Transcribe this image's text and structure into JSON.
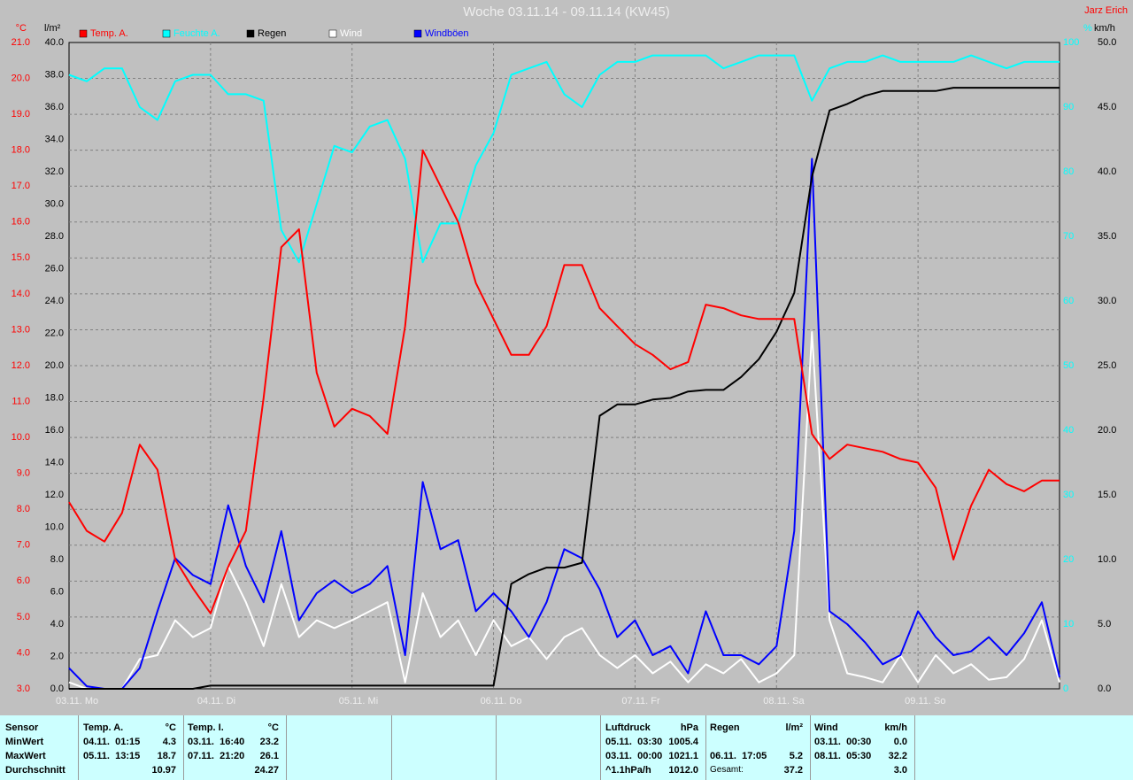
{
  "chart_data": {
    "type": "line",
    "title": "Woche 03.11.14 - 09.11.14 (KW45)",
    "author": "Jarz Erich",
    "categories": [
      "03.11. Mo",
      null,
      null,
      null,
      null,
      null,
      null,
      null,
      "04.11. Di",
      null,
      null,
      null,
      null,
      null,
      null,
      null,
      "05.11. Mi",
      null,
      null,
      null,
      null,
      null,
      null,
      null,
      "06.11. Do",
      null,
      null,
      null,
      null,
      null,
      null,
      null,
      "07.11. Fr",
      null,
      null,
      null,
      null,
      null,
      null,
      null,
      "08.11. Sa",
      null,
      null,
      null,
      null,
      null,
      null,
      null,
      "09.11. So",
      null,
      null,
      null,
      null,
      null,
      null,
      null,
      null
    ],
    "ylabel": "°C",
    "ylim": [
      3,
      21
    ],
    "yticks": [
      {
        "value": 3,
        "label": "3.0"
      },
      {
        "value": 4,
        "label": "4.0"
      },
      {
        "value": 5,
        "label": "5.0"
      },
      {
        "value": 6,
        "label": "6.0"
      },
      {
        "value": 7,
        "label": "7.0"
      },
      {
        "value": 8,
        "label": "8.0"
      },
      {
        "value": 9,
        "label": "9.0"
      },
      {
        "value": 10,
        "label": "10.0"
      },
      {
        "value": 11,
        "label": "11.0"
      },
      {
        "value": 12,
        "label": "12.0"
      },
      {
        "value": 13,
        "label": "13.0"
      },
      {
        "value": 14,
        "label": "14.0"
      },
      {
        "value": 15,
        "label": "15.0"
      },
      {
        "value": 16,
        "label": "16.0"
      },
      {
        "value": 17,
        "label": "17.0"
      },
      {
        "value": 18,
        "label": "18.0"
      },
      {
        "value": 19,
        "label": "19.0"
      },
      {
        "value": 20,
        "label": "20.0"
      },
      {
        "value": 21,
        "label": "21.0"
      }
    ],
    "y2label": "l/m²",
    "y2lim": [
      0,
      40
    ],
    "y2ticks": [
      {
        "value": 0,
        "label": "0.0"
      },
      {
        "value": 2,
        "label": "2.0"
      },
      {
        "value": 4,
        "label": "4.0"
      },
      {
        "value": 6,
        "label": "6.0"
      },
      {
        "value": 8,
        "label": "8.0"
      },
      {
        "value": 10,
        "label": "10.0"
      },
      {
        "value": 12,
        "label": "12.0"
      },
      {
        "value": 14,
        "label": "14.0"
      },
      {
        "value": 16,
        "label": "16.0"
      },
      {
        "value": 18,
        "label": "18.0"
      },
      {
        "value": 20,
        "label": "20.0"
      },
      {
        "value": 22,
        "label": "22.0"
      },
      {
        "value": 24,
        "label": "24.0"
      },
      {
        "value": 26,
        "label": "26.0"
      },
      {
        "value": 28,
        "label": "28.0"
      },
      {
        "value": 30,
        "label": "30.0"
      },
      {
        "value": 32,
        "label": "32.0"
      },
      {
        "value": 34,
        "label": "34.0"
      },
      {
        "value": 36,
        "label": "36.0"
      },
      {
        "value": 38,
        "label": "38.0"
      },
      {
        "value": 40,
        "label": "40.0"
      }
    ],
    "y3label": "%",
    "y3lim": [
      0,
      100
    ],
    "y3ticks": [
      0,
      10,
      20,
      30,
      40,
      50,
      60,
      70,
      80,
      90,
      100
    ],
    "y4label": "km/h",
    "y4lim": [
      0,
      50
    ],
    "y4ticks": [
      {
        "value": 0,
        "label": "0.0"
      },
      {
        "value": 5,
        "label": "5.0"
      },
      {
        "value": 10,
        "label": "10.0"
      },
      {
        "value": 15,
        "label": "15.0"
      },
      {
        "value": 20,
        "label": "20.0"
      },
      {
        "value": 25,
        "label": "25.0"
      },
      {
        "value": 30,
        "label": "30.0"
      },
      {
        "value": 35,
        "label": "35.0"
      },
      {
        "value": 40,
        "label": "40.0"
      },
      {
        "value": 45,
        "label": "45.0"
      },
      {
        "value": 50,
        "label": "50.0"
      }
    ],
    "grid": true,
    "series": [
      {
        "name": "Temp. A.",
        "color": "#ff0000",
        "axis": "y",
        "values": [
          8.2,
          7.4,
          7.1,
          7.9,
          9.8,
          9.1,
          6.6,
          5.8,
          5.1,
          6.4,
          7.4,
          11.1,
          15.3,
          15.8,
          11.8,
          10.3,
          10.8,
          10.6,
          10.1,
          13.1,
          18.0,
          17.0,
          16.0,
          14.3,
          13.3,
          12.3,
          12.3,
          13.1,
          14.8,
          14.8,
          13.6,
          13.1,
          12.6,
          12.3,
          11.9,
          12.1,
          13.7,
          13.6,
          13.4,
          13.3,
          13.3,
          13.3,
          10.1,
          9.4,
          9.8,
          9.7,
          9.6,
          9.4,
          9.3,
          8.6,
          6.6,
          8.1,
          9.1,
          8.7,
          8.5,
          8.8,
          8.8
        ]
      },
      {
        "name": "Feuchte A.",
        "color": "#00ffff",
        "axis": "y3",
        "values": [
          95,
          94,
          96,
          96,
          90,
          88,
          94,
          95,
          95,
          92,
          92,
          91,
          71,
          66,
          75,
          84,
          83,
          87,
          88,
          82,
          66,
          72,
          72,
          81,
          86,
          95,
          96,
          97,
          92,
          90,
          95,
          97,
          97,
          98,
          98,
          98,
          98,
          96,
          97,
          98,
          98,
          98,
          91,
          96,
          97,
          97,
          98,
          97,
          97,
          97,
          97,
          98,
          97,
          96,
          97,
          97,
          97
        ]
      },
      {
        "name": "Regen",
        "color": "#000000",
        "axis": "y2",
        "values": [
          0,
          0,
          0,
          0,
          0,
          0,
          0,
          0,
          0.2,
          0.2,
          0.2,
          0.2,
          0.2,
          0.2,
          0.2,
          0.2,
          0.2,
          0.2,
          0.2,
          0.2,
          0.2,
          0.2,
          0.2,
          0.2,
          0.2,
          6.5,
          7.1,
          7.5,
          7.5,
          7.8,
          16.9,
          17.6,
          17.6,
          17.9,
          18.0,
          18.4,
          18.5,
          18.5,
          19.3,
          20.4,
          22.1,
          24.5,
          31.7,
          35.8,
          36.2,
          36.7,
          37.0,
          37.0,
          37.0,
          37.0,
          37.2,
          37.2,
          37.2,
          37.2,
          37.2,
          37.2,
          37.2
        ]
      },
      {
        "name": "Wind",
        "color": "#ffffff",
        "axis": "y4",
        "values": [
          0.5,
          0,
          0,
          0,
          2.3,
          2.6,
          5.3,
          4.0,
          4.7,
          9.5,
          6.7,
          3.3,
          8.1,
          4.0,
          5.3,
          4.7,
          5.3,
          6.0,
          6.7,
          0.5,
          7.4,
          4.0,
          5.3,
          2.6,
          5.3,
          3.3,
          4.0,
          2.3,
          4.0,
          4.7,
          2.6,
          1.6,
          2.6,
          1.2,
          2.1,
          0.5,
          1.9,
          1.2,
          2.3,
          0.5,
          1.2,
          2.6,
          27.6,
          5.3,
          1.2,
          0.9,
          0.5,
          2.6,
          0.5,
          2.6,
          1.2,
          1.9,
          0.7,
          0.9,
          2.3,
          5.3,
          0.5
        ]
      },
      {
        "name": "Windböen",
        "color": "#0000ff",
        "axis": "y4",
        "values": [
          1.6,
          0.2,
          0,
          0,
          1.6,
          6.0,
          10.1,
          8.8,
          8.1,
          14.2,
          9.5,
          6.7,
          12.2,
          5.3,
          7.4,
          8.4,
          7.4,
          8.1,
          9.5,
          2.6,
          16.0,
          10.8,
          11.5,
          6.0,
          7.4,
          6.0,
          4.0,
          6.7,
          10.8,
          10.1,
          7.7,
          4.0,
          5.3,
          2.6,
          3.3,
          1.2,
          6.0,
          2.6,
          2.6,
          1.9,
          3.3,
          12.2,
          41.0,
          6.0,
          5.0,
          3.6,
          1.9,
          2.6,
          6.0,
          4.0,
          2.6,
          2.9,
          4.0,
          2.6,
          4.3,
          6.7,
          0.9
        ]
      }
    ]
  },
  "stats": {
    "labels": [
      "Sensor",
      "MinWert",
      "MaxWert",
      "Durchschnitt"
    ],
    "columns": [
      {
        "name": "Temp. A.",
        "unit": "°C",
        "min": [
          "04.11.  01:15",
          "4.3"
        ],
        "max": [
          "05.11.  13:15",
          "18.7"
        ],
        "avg": [
          "10.97"
        ]
      },
      {
        "name": "Temp. I.",
        "unit": "°C",
        "min": [
          "03.11.  16:40",
          "23.2"
        ],
        "max": [
          "07.11.  21:20",
          "26.1"
        ],
        "avg": [
          "24.27"
        ]
      },
      {
        "name": "Luftdruck",
        "unit": "hPa",
        "min": [
          "05.11.  03:30",
          "1005.4"
        ],
        "max": [
          "03.11.  00:00",
          "1021.1"
        ],
        "avg": [
          "^1.1hPa/h",
          "1012.0"
        ]
      },
      {
        "name": "Regen",
        "unit": "l/m²",
        "max": [
          "06.11.  17:05",
          "5.2"
        ],
        "avg": [
          "Gesamt:",
          "37.2"
        ]
      },
      {
        "name": "Wind",
        "unit": "km/h",
        "min": [
          "03.11.  00:30",
          "0.0"
        ],
        "max": [
          "08.11.  05:30",
          "32.2"
        ],
        "avg": [
          "3.0"
        ]
      }
    ]
  }
}
